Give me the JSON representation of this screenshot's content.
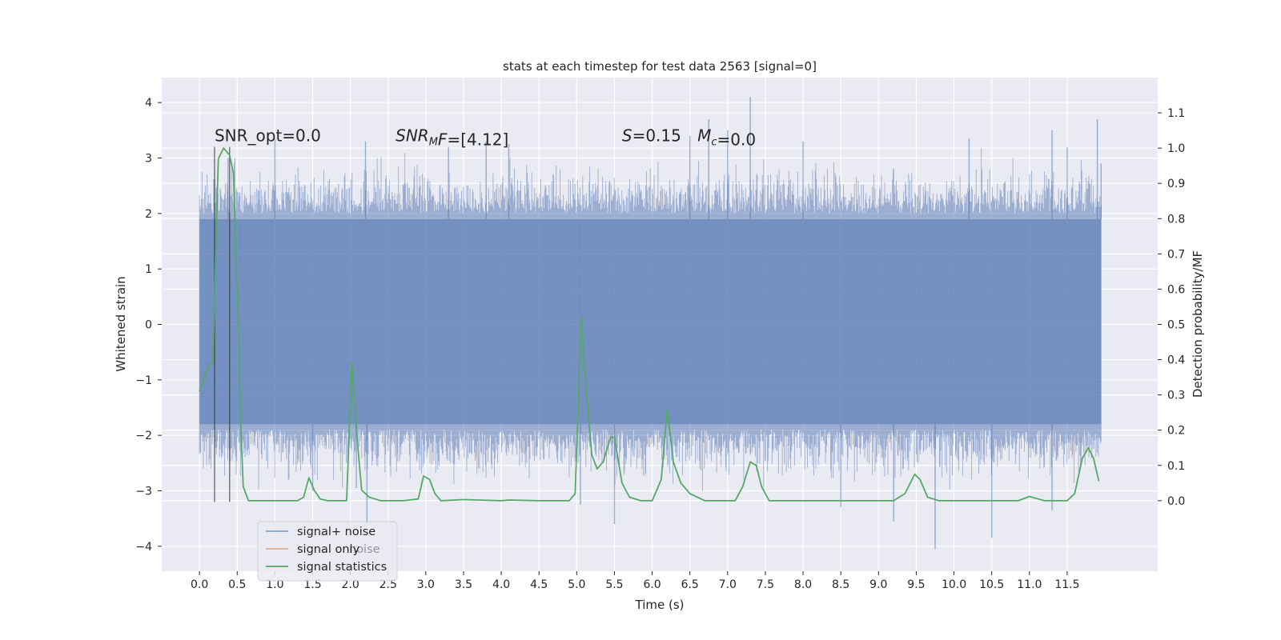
{
  "chart_data": {
    "type": "line",
    "title": "stats at each timestep for test data 2563 [signal=0]",
    "xlabel": "Time (s)",
    "ylabel_left": "Whitened strain",
    "ylabel_right": "Detection probability/MF",
    "xlim": [
      -0.5,
      12.7
    ],
    "ylim_left": [
      -4.45,
      4.45
    ],
    "ylim_right": [
      -0.2,
      1.2
    ],
    "x_ticks": [
      "0.0",
      "0.5",
      "1.0",
      "1.5",
      "2.0",
      "2.5",
      "3.0",
      "3.5",
      "4.0",
      "4.5",
      "5.0",
      "5.5",
      "6.0",
      "6.5",
      "7.0",
      "7.5",
      "8.0",
      "8.5",
      "9.0",
      "9.5",
      "10.0",
      "10.5",
      "11.0",
      "11.5"
    ],
    "y_ticks_left": [
      "−4",
      "−3",
      "−2",
      "−1",
      "0",
      "1",
      "2",
      "3",
      "4"
    ],
    "y_ticks_right": [
      "0.0",
      "0.1",
      "0.2",
      "0.3",
      "0.4",
      "0.5",
      "0.6",
      "0.7",
      "0.8",
      "0.9",
      "1.0",
      "1.1"
    ],
    "grid": true,
    "legend_placement": "lower-left",
    "colors": {
      "noise": "#4c72b0",
      "signal": "#dd8452",
      "stats": "#55a868",
      "background": "#eaeaf2",
      "grid": "#ffffff",
      "vline": "#262626"
    },
    "series": [
      {
        "name": "signal+ noise",
        "kind": "dense_band",
        "axis": "left",
        "t_start": 0.0,
        "t_end": 11.95,
        "core_band": [
          -1.8,
          1.9
        ],
        "extreme_spikes": [
          [
            0.38,
            3.0
          ],
          [
            1.0,
            3.35
          ],
          [
            1.5,
            -3.0
          ],
          [
            2.08,
            -2.95
          ],
          [
            2.2,
            3.3
          ],
          [
            2.22,
            -3.6
          ],
          [
            3.3,
            3.2
          ],
          [
            3.8,
            3.3
          ],
          [
            4.1,
            3.25
          ],
          [
            5.05,
            -3.25
          ],
          [
            5.5,
            -3.6
          ],
          [
            6.5,
            3.4
          ],
          [
            6.75,
            3.7
          ],
          [
            7.0,
            3.5
          ],
          [
            7.3,
            4.1
          ],
          [
            8.0,
            3.3
          ],
          [
            8.5,
            -3.3
          ],
          [
            9.2,
            -3.55
          ],
          [
            9.75,
            -4.05
          ],
          [
            10.2,
            3.35
          ],
          [
            10.5,
            -3.85
          ],
          [
            11.3,
            3.5
          ],
          [
            11.3,
            -3.35
          ],
          [
            11.5,
            3.2
          ],
          [
            11.9,
            3.7
          ],
          [
            11.95,
            2.9
          ]
        ]
      },
      {
        "name": "signal only",
        "kind": "line",
        "axis": "left",
        "points": []
      },
      {
        "name": "signal statistics",
        "kind": "line",
        "axis": "right",
        "points": [
          [
            0.0,
            0.31
          ],
          [
            0.1,
            0.37
          ],
          [
            0.15,
            0.39
          ],
          [
            0.18,
            0.4
          ],
          [
            0.22,
            0.75
          ],
          [
            0.25,
            0.97
          ],
          [
            0.32,
            1.0
          ],
          [
            0.4,
            0.98
          ],
          [
            0.45,
            0.93
          ],
          [
            0.5,
            0.6
          ],
          [
            0.55,
            0.2
          ],
          [
            0.58,
            0.04
          ],
          [
            0.65,
            0.0
          ],
          [
            1.0,
            0.0
          ],
          [
            1.3,
            0.0
          ],
          [
            1.38,
            0.01
          ],
          [
            1.45,
            0.065
          ],
          [
            1.52,
            0.03
          ],
          [
            1.6,
            0.005
          ],
          [
            1.7,
            0.0
          ],
          [
            1.95,
            0.0
          ],
          [
            2.02,
            0.39
          ],
          [
            2.08,
            0.2
          ],
          [
            2.15,
            0.03
          ],
          [
            2.25,
            0.01
          ],
          [
            2.4,
            0.0
          ],
          [
            2.7,
            0.0
          ],
          [
            2.9,
            0.005
          ],
          [
            2.97,
            0.07
          ],
          [
            3.05,
            0.06
          ],
          [
            3.12,
            0.02
          ],
          [
            3.2,
            0.0
          ],
          [
            3.5,
            0.003
          ],
          [
            4.0,
            0.0
          ],
          [
            4.1,
            0.002
          ],
          [
            4.5,
            0.0
          ],
          [
            4.9,
            0.0
          ],
          [
            4.98,
            0.02
          ],
          [
            5.06,
            0.52
          ],
          [
            5.13,
            0.3
          ],
          [
            5.2,
            0.13
          ],
          [
            5.27,
            0.09
          ],
          [
            5.35,
            0.11
          ],
          [
            5.45,
            0.18
          ],
          [
            5.5,
            0.18
          ],
          [
            5.6,
            0.05
          ],
          [
            5.7,
            0.01
          ],
          [
            5.85,
            0.0
          ],
          [
            6.0,
            0.0
          ],
          [
            6.12,
            0.06
          ],
          [
            6.2,
            0.26
          ],
          [
            6.28,
            0.11
          ],
          [
            6.38,
            0.05
          ],
          [
            6.5,
            0.02
          ],
          [
            6.7,
            0.0
          ],
          [
            7.1,
            0.0
          ],
          [
            7.2,
            0.04
          ],
          [
            7.3,
            0.11
          ],
          [
            7.38,
            0.1
          ],
          [
            7.45,
            0.04
          ],
          [
            7.55,
            0.0
          ],
          [
            8.0,
            0.0
          ],
          [
            9.2,
            0.0
          ],
          [
            9.35,
            0.02
          ],
          [
            9.48,
            0.075
          ],
          [
            9.55,
            0.06
          ],
          [
            9.65,
            0.01
          ],
          [
            9.8,
            0.0
          ],
          [
            10.5,
            0.0
          ],
          [
            10.85,
            0.0
          ],
          [
            11.0,
            0.012
          ],
          [
            11.2,
            0.0
          ],
          [
            11.5,
            0.0
          ],
          [
            11.6,
            0.02
          ],
          [
            11.7,
            0.12
          ],
          [
            11.78,
            0.15
          ],
          [
            11.85,
            0.12
          ],
          [
            11.92,
            0.055
          ]
        ]
      }
    ],
    "vertical_lines": [
      {
        "x": 0.2,
        "y_range": [
          -3.2,
          3.2
        ]
      },
      {
        "x": 0.4,
        "y_range": [
          -3.2,
          3.2
        ]
      }
    ],
    "annotations": [
      {
        "id": "snr_opt",
        "text": "SNR_opt=0.0",
        "x": 0.2,
        "y": 3.2
      },
      {
        "id": "snr_mf",
        "x": 2.6,
        "y": 3.2,
        "parts": [
          {
            "text": "SNR",
            "italic": true
          },
          {
            "text": "M",
            "italic": true,
            "sub": true
          },
          {
            "text": "F",
            "italic": true
          },
          {
            "text": "=[4.12]"
          }
        ]
      },
      {
        "id": "s_stat",
        "x": 5.6,
        "y": 3.2,
        "parts": [
          {
            "text": "S",
            "italic": true
          },
          {
            "text": "=0.15"
          }
        ]
      },
      {
        "id": "mc",
        "x": 6.6,
        "y": 3.2,
        "parts": [
          {
            "text": "M",
            "italic": true
          },
          {
            "text": "c",
            "italic": true,
            "sub": true
          },
          {
            "text": "=0.0"
          }
        ]
      }
    ],
    "legend": [
      "signal+ noise",
      "signal only",
      "signal statistics"
    ],
    "legend_hidden_fragment": "noise"
  }
}
